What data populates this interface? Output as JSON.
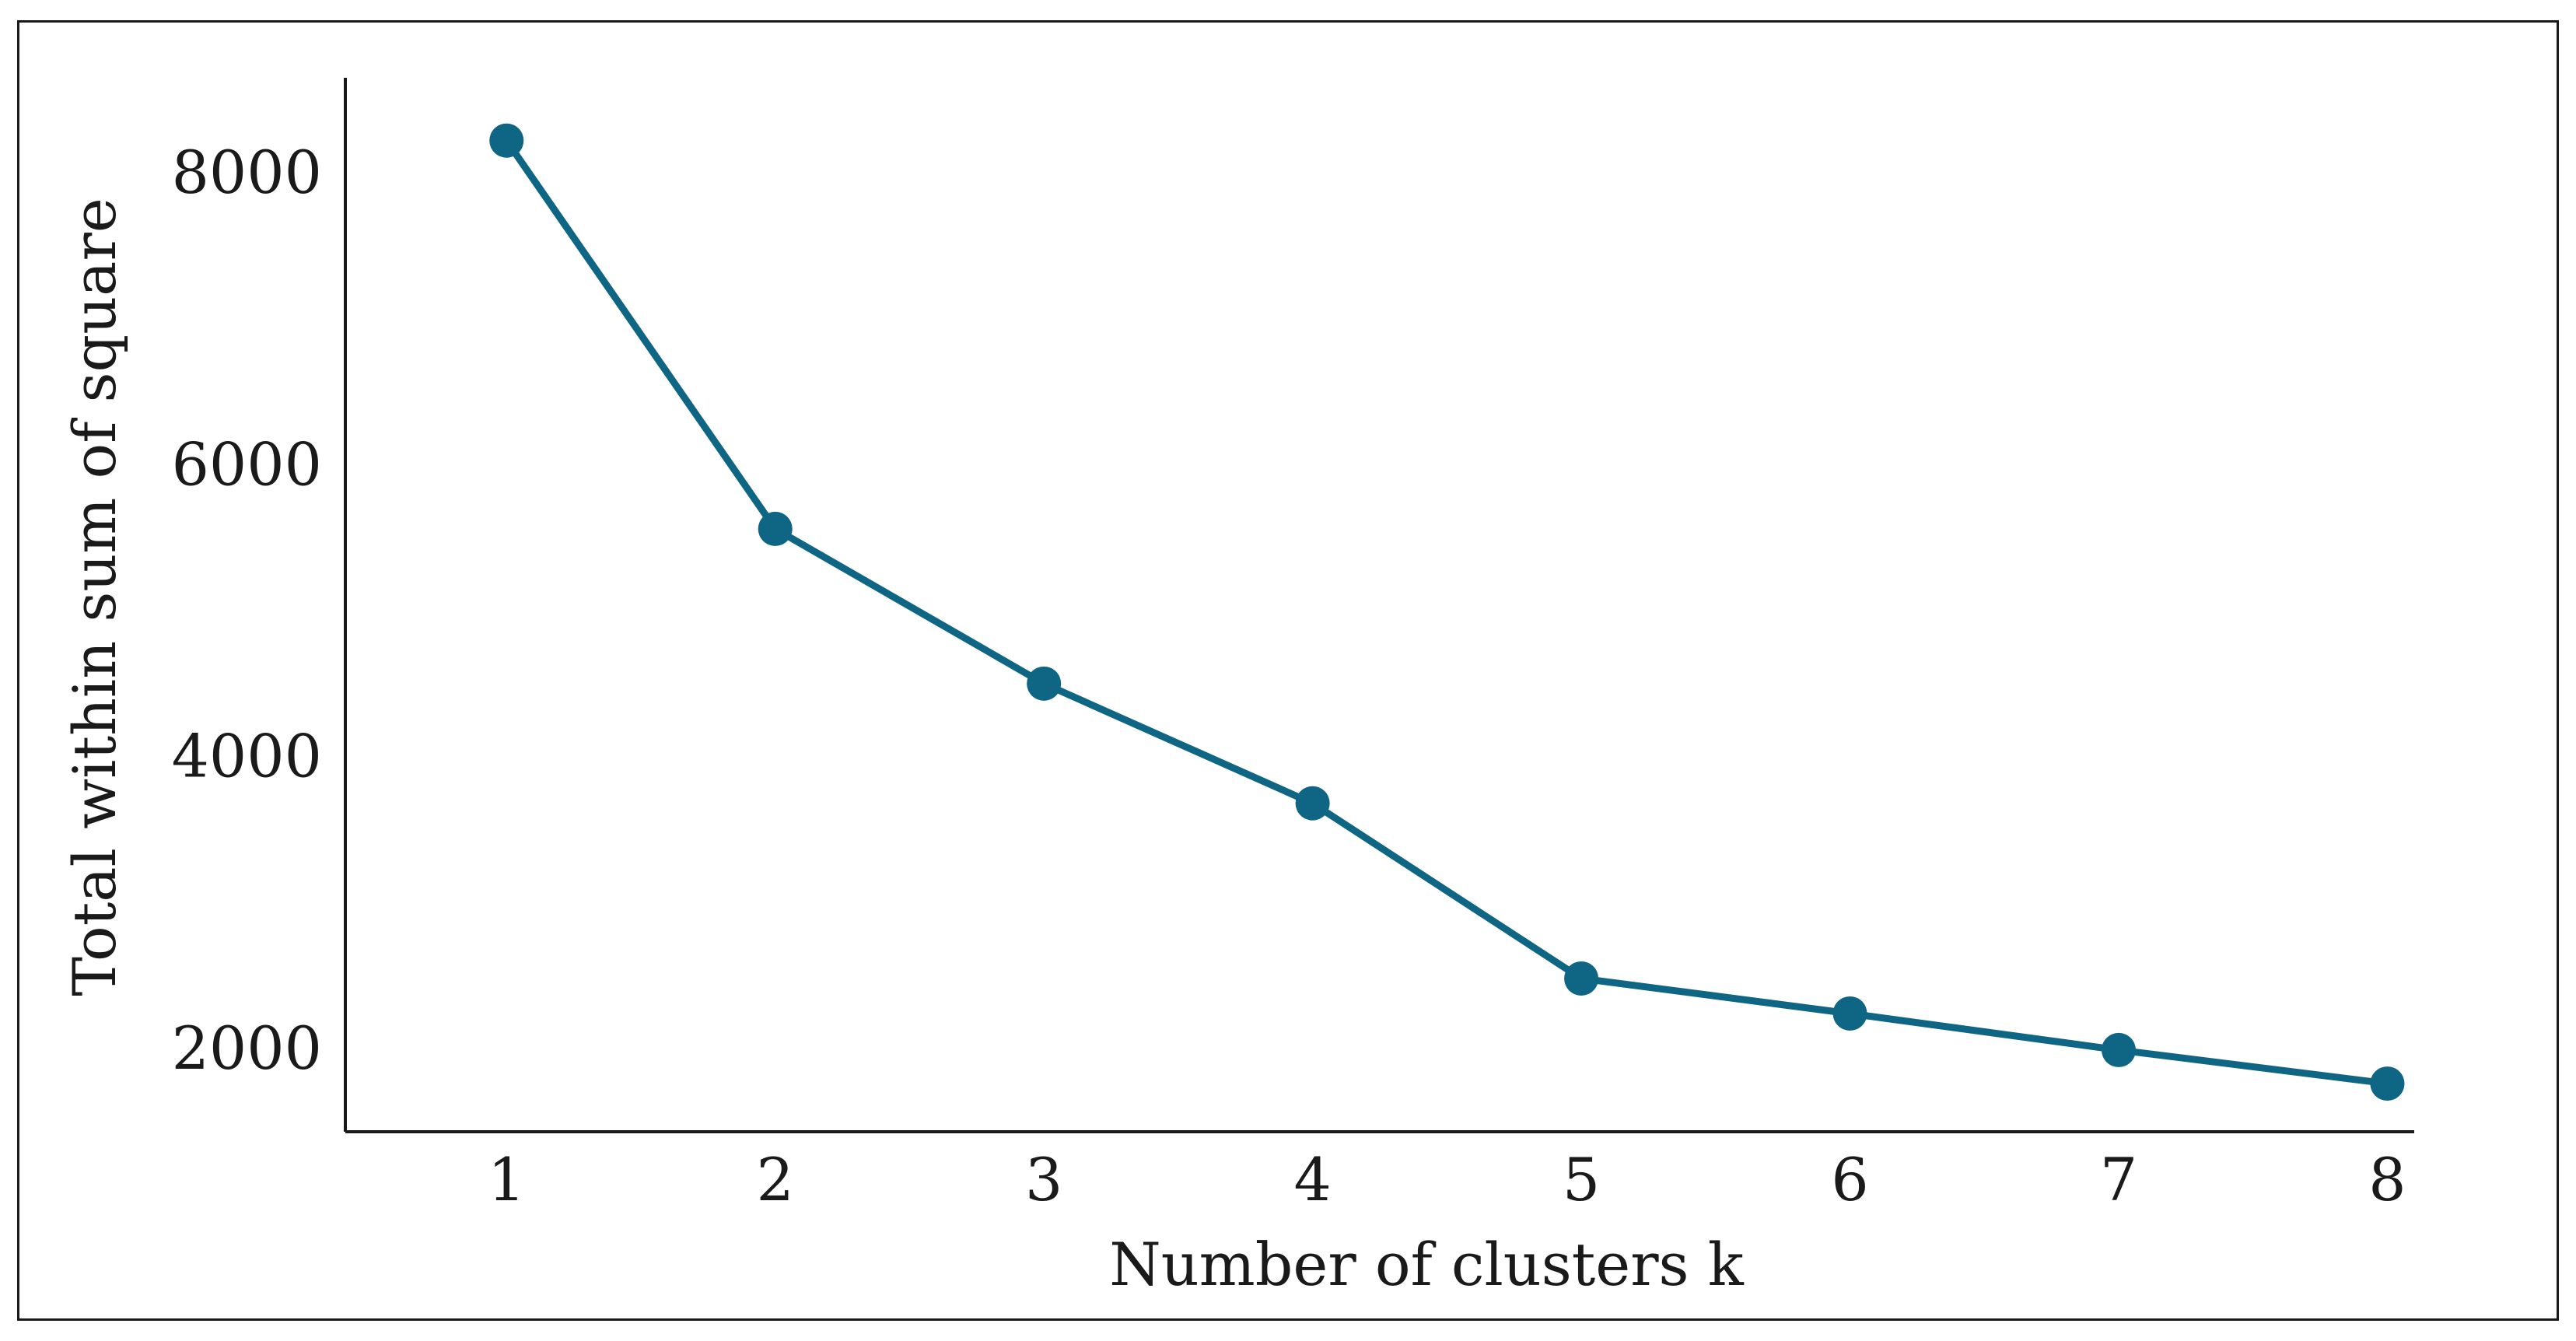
{
  "chart_data": {
    "type": "line",
    "title": "",
    "xlabel": "Number of clusters k",
    "ylabel": "Total within sum of square",
    "x": [
      1,
      2,
      3,
      4,
      5,
      6,
      7,
      8
    ],
    "x_tick_labels": [
      "1",
      "2",
      "3",
      "4",
      "5",
      "6",
      "7",
      "8"
    ],
    "y_ticks": [
      2000,
      4000,
      6000,
      8000
    ],
    "y_tick_labels": [
      "2000",
      "4000",
      "6000",
      "8000"
    ],
    "xlim": [
      0.4,
      8.1
    ],
    "ylim": [
      1430,
      8650
    ],
    "series": [
      {
        "values": [
          8220,
          5560,
          4500,
          3680,
          2480,
          2240,
          1990,
          1760
        ]
      }
    ],
    "line_color": "#0e6584",
    "grid": false,
    "legend": "none"
  }
}
